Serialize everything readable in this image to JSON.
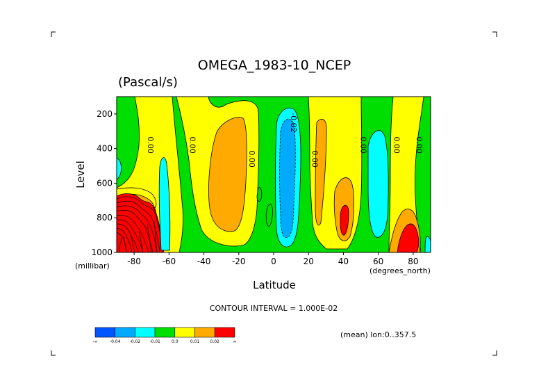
{
  "chart_data": {
    "type": "contour",
    "title": "OMEGA_1983-10_NCEP",
    "subtitle": "(Pascal/s)",
    "xlabel": "Latitude",
    "ylabel": "Level",
    "x_unit_label": "(degrees_north)",
    "y_unit_label": "(millibar)",
    "xlim": [
      -90,
      90
    ],
    "ylim": [
      1000,
      100
    ],
    "y_reversed": true,
    "x_ticks": [
      "-80",
      "-60",
      "-40",
      "-20",
      "0",
      "20",
      "40",
      "60",
      "80"
    ],
    "y_ticks": [
      "200",
      "400",
      "600",
      "800",
      "1000"
    ],
    "contour_interval_text": "CONTOUR INTERVAL = 1.000E-02",
    "mean_text": "(mean) lon:0..357.5",
    "contour_labels": [
      {
        "text": "0.00",
        "lat": -72,
        "level": 380
      },
      {
        "text": "0.00",
        "lat": -48,
        "level": 380
      },
      {
        "text": "0.00",
        "lat": -14,
        "level": 460
      },
      {
        "text": "-0.02",
        "lat": 10,
        "level": 250
      },
      {
        "text": "0.00",
        "lat": 22,
        "level": 460
      },
      {
        "text": "0.00",
        "lat": 50,
        "level": 380
      },
      {
        "text": "0.00",
        "lat": 69,
        "level": 380
      },
      {
        "text": "0.00",
        "lat": 82,
        "level": 380
      }
    ],
    "colorbar": {
      "levels": [
        "-∞",
        "-0.04",
        "-0.02",
        "-0.01",
        "0.0",
        "0.01",
        "0.02",
        "∞"
      ],
      "colors": [
        "#0055ff",
        "#00aaff",
        "#00ffff",
        "#00dd00",
        "#ffff00",
        "#ffaa00",
        "#ff0000"
      ]
    },
    "regions": [
      {
        "band": "0.0..0.01",
        "color": "#ffff00",
        "lat": [
          -78,
          -55
        ],
        "level": [
          100,
          1000
        ]
      },
      {
        "band": "0.0..0.01",
        "color": "#ffff00",
        "lat": [
          -42,
          -2
        ],
        "level": [
          100,
          920
        ]
      },
      {
        "band": "0.0..0.01",
        "color": "#ffff00",
        "lat": [
          18,
          48
        ],
        "level": [
          100,
          980
        ]
      },
      {
        "band": "0.0..0.01",
        "color": "#ffff00",
        "lat": [
          56,
          84
        ],
        "level": [
          100,
          1000
        ]
      },
      {
        "band": "0.01..0.02",
        "color": "#ffaa00",
        "lat": [
          -36,
          -8
        ],
        "level": [
          220,
          870
        ]
      },
      {
        "band": "0.01..0.02",
        "color": "#ffaa00",
        "lat": [
          24,
          28
        ],
        "level": [
          350,
          800
        ]
      },
      {
        "band": "0.01..0.02",
        "color": "#ffaa00",
        "lat": [
          35,
          47
        ],
        "level": [
          560,
          940
        ]
      },
      {
        "band": "0.01..0.02",
        "color": "#ffaa00",
        "lat": [
          68,
          86
        ],
        "level": [
          700,
          1000
        ]
      },
      {
        "band": ">0.02",
        "color": "#ff0000",
        "lat": [
          -90,
          -65
        ],
        "level": [
          680,
          1000
        ]
      },
      {
        "band": ">0.02",
        "color": "#ff0000",
        "lat": [
          40,
          44
        ],
        "level": [
          780,
          880
        ]
      },
      {
        "band": ">0.02",
        "color": "#ff0000",
        "lat": [
          72,
          86
        ],
        "level": [
          800,
          1000
        ]
      },
      {
        "band": "-0.02..-0.01",
        "color": "#00ffff",
        "lat": [
          2,
          20
        ],
        "level": [
          150,
          960
        ]
      },
      {
        "band": "-0.02..-0.01",
        "color": "#00ffff",
        "lat": [
          55,
          68
        ],
        "level": [
          230,
          880
        ]
      },
      {
        "band": "-0.02..-0.01",
        "color": "#00ffff",
        "lat": [
          -62,
          -56
        ],
        "level": [
          440,
          990
        ]
      },
      {
        "band": "-0.02..-0.01",
        "color": "#00ffff",
        "lat": [
          -90,
          -88
        ],
        "level": [
          470,
          600
        ]
      },
      {
        "band": "-0.04..-0.02",
        "color": "#00aaff",
        "lat": [
          5,
          15
        ],
        "level": [
          190,
          940
        ]
      }
    ]
  }
}
